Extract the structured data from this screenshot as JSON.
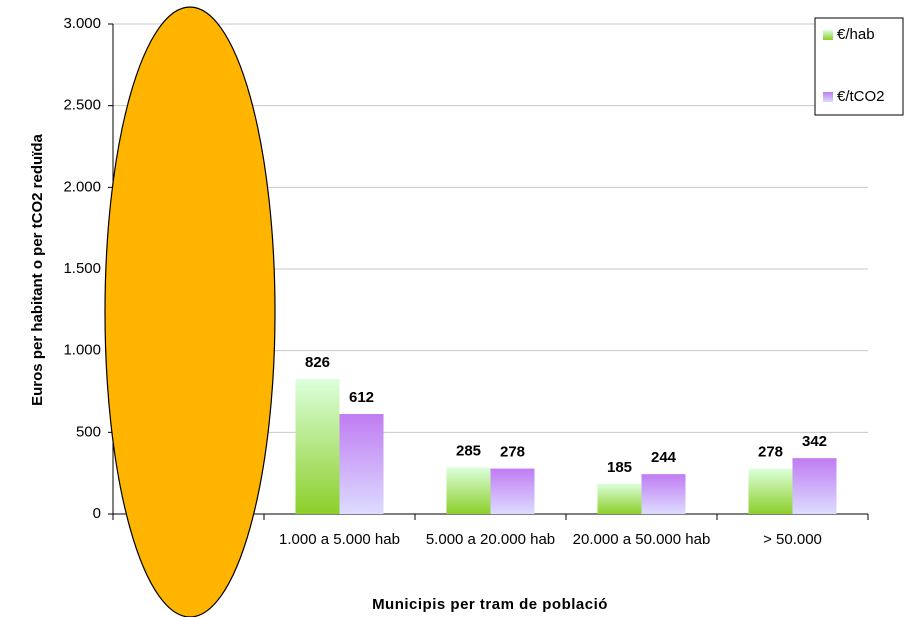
{
  "chart_data": {
    "type": "bar",
    "x_label": "Municipis per tram de població",
    "y_label": "Euros per habitant o per tCO2 reduïda",
    "categories": [
      null,
      "1.000 a 5.000 hab",
      "5.000 a 20.000 hab",
      "20.000 a 50.000 hab",
      "> 50.000"
    ],
    "series": [
      {
        "name": "€/hab",
        "color": "#8ccf2a",
        "values": [
          null,
          826,
          285,
          185,
          278
        ]
      },
      {
        "name": "€/tCO2",
        "color": "#c07cf2",
        "values": [
          null,
          612,
          278,
          244,
          342
        ]
      }
    ],
    "ylim": [
      0,
      3000
    ],
    "yticks": [
      0,
      500,
      {
        "value": 1000,
        "label": "1.000"
      },
      {
        "value": 1500,
        "label": "1.500"
      },
      {
        "value": 2000,
        "label": "2.000"
      },
      {
        "value": 2500,
        "label": "2.500"
      },
      {
        "value": 3000,
        "label": "3.000"
      }
    ],
    "grid": true,
    "legend": "top-right"
  }
}
